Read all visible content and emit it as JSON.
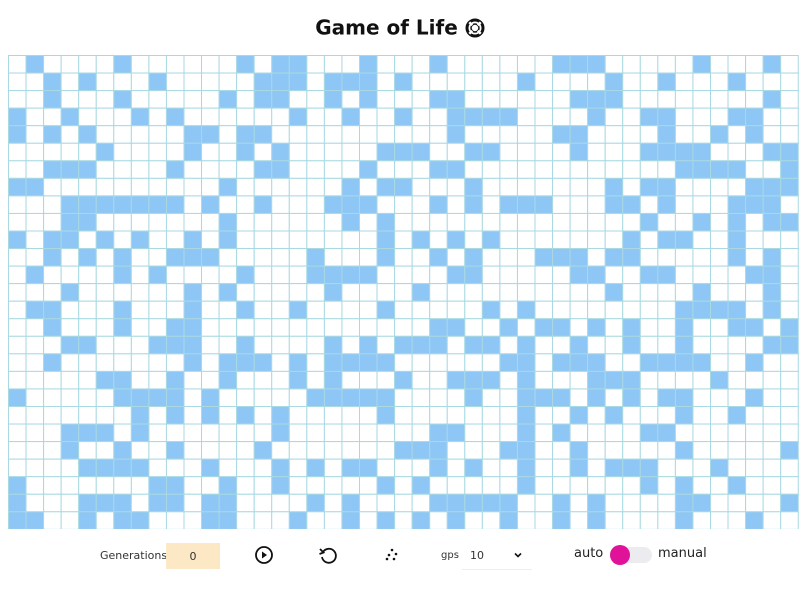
{
  "header": {
    "title": "Game of Life"
  },
  "controls": {
    "generations_label": "Generations:",
    "generations": 0,
    "gps_label": "gps",
    "gps": 10,
    "mode_auto": "auto",
    "mode_manual": "manual"
  }
}
